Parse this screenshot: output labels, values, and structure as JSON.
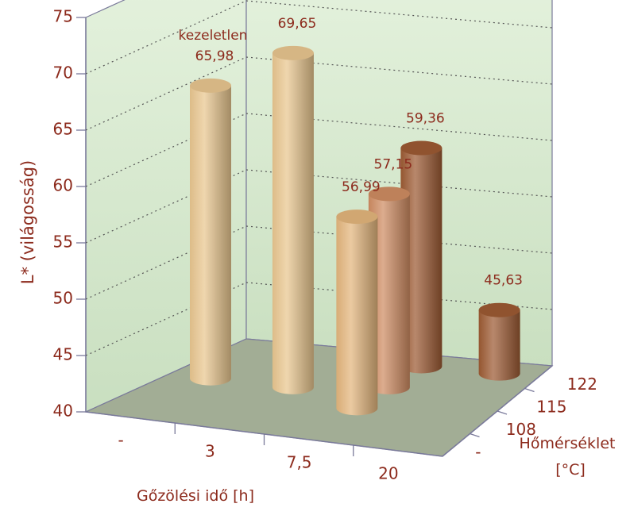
{
  "chart_data": {
    "type": "bar",
    "title": "",
    "ylabel": "L* (világosság)",
    "xlabel": "Gőzölési idő [h]",
    "zlabel_line1": "Hőmérséklet",
    "zlabel_line2": "[°C]",
    "ylim": [
      40,
      75
    ],
    "yticks": [
      "40",
      "45",
      "50",
      "55",
      "60",
      "65",
      "70",
      "75"
    ],
    "x_categories": [
      "-",
      "3",
      "7,5",
      "20"
    ],
    "z_categories": [
      "-",
      "108",
      "115",
      "122"
    ],
    "grid": true,
    "bars": [
      {
        "x": "-",
        "z": "-",
        "value": 65.98,
        "label": "65,98",
        "note": "kezeletlen",
        "color": "#e9c68f"
      },
      {
        "x": "3",
        "z": "-",
        "value": 69.65,
        "label": "69,65",
        "note": "",
        "color": "#e9c68f"
      },
      {
        "x": "7,5",
        "z": "122",
        "value": 59.36,
        "label": "59,36",
        "note": "",
        "color": "#9c5a33"
      },
      {
        "x": "7,5",
        "z": "115",
        "value": 57.15,
        "label": "57,15",
        "note": "",
        "color": "#cf8c62"
      },
      {
        "x": "7,5",
        "z": "108",
        "value": 56.99,
        "label": "56,99",
        "note": "",
        "color": "#e3b57c"
      },
      {
        "x": "20",
        "z": "122",
        "value": 45.63,
        "label": "45,63",
        "note": "",
        "color": "#9c5a33"
      }
    ]
  }
}
